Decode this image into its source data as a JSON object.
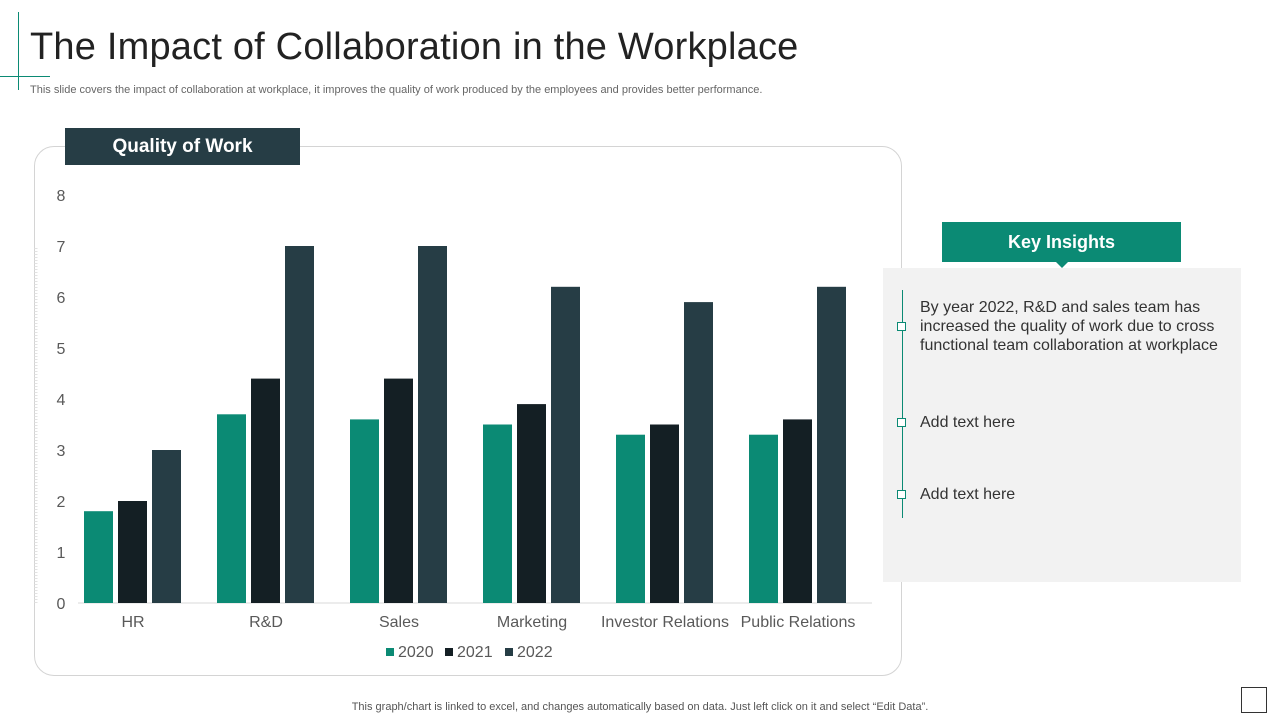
{
  "page": {
    "title": "The Impact of Collaboration in the Workplace",
    "subtitle": "This slide covers the impact of collaboration at workplace, it improves the quality of work produced by the employees and provides better performance.",
    "footer": "This graph/chart is linked to excel,  and changes automatically based on data. Just left click on it and select “Edit Data”."
  },
  "chart_header": "Quality of Work",
  "chart_data": {
    "type": "bar",
    "title": "",
    "xlabel": "",
    "ylabel": "",
    "categories": [
      "HR",
      "R&D",
      "Sales",
      "Marketing",
      "Investor Relations",
      "Public Relations"
    ],
    "series": [
      {
        "name": "2020",
        "values": [
          1.8,
          3.7,
          3.6,
          3.5,
          3.3,
          3.3
        ],
        "color": "#0b8a74"
      },
      {
        "name": "2021",
        "values": [
          2.0,
          4.4,
          4.4,
          3.9,
          3.5,
          3.6
        ],
        "color": "#141f24"
      },
      {
        "name": "2022",
        "values": [
          3.0,
          7.0,
          7.0,
          6.2,
          5.9,
          6.2
        ],
        "color": "#263d45"
      }
    ],
    "yticks": [
      "0",
      "1",
      "2",
      "3",
      "4",
      "5",
      "6",
      "7",
      "8"
    ],
    "ylim": [
      0,
      8
    ],
    "grid": false,
    "legend_position": "bottom"
  },
  "insights": {
    "header": "Key Insights",
    "items": [
      "By year 2022, R&D and sales team has increased the quality of work due to cross functional  team collaboration at workplace",
      "Add text here",
      "Add text here"
    ]
  },
  "colors": {
    "accent": "#0b8a74",
    "dark": "#263d45",
    "panel": "#f2f2f2"
  }
}
